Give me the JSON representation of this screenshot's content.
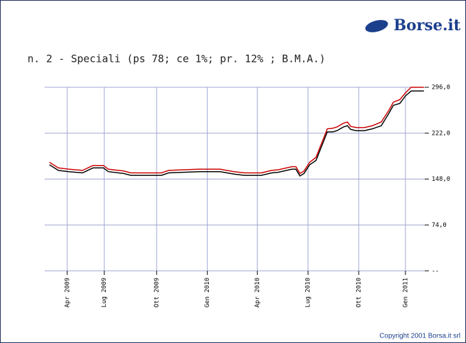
{
  "logo": "Borse.it",
  "copyright": "Copyright 2001 Borsa.it srl",
  "chart_data": {
    "type": "line",
    "title": "n. 2 - Speciali (ps 78; ce 1%; pr. 12% ; B.M.A.)",
    "x": [
      1.9,
      2.45,
      3.1,
      3.95,
      4.6,
      5.25,
      5.55,
      6.5,
      6.95,
      8.85,
      9.3,
      11.2,
      12.5,
      13.35,
      14,
      15.05,
      15.7,
      16.1,
      16.95,
      17.2,
      17.45,
      17.7,
      18.05,
      18.45,
      18.75,
      19.15,
      19.5,
      19.75,
      20.15,
      20.4,
      20.6,
      20.95,
      21.45,
      21.95,
      22.5,
      22.95,
      23.25,
      23.65,
      24,
      24.35,
      25.15
    ],
    "series": [
      {
        "color": "#cc0000",
        "values": [
          175,
          166,
          164,
          162,
          170,
          170,
          164,
          161,
          158,
          158,
          162,
          164,
          164,
          160,
          158,
          158,
          162,
          163,
          168,
          168,
          157,
          161,
          175,
          183,
          203,
          229,
          230,
          232,
          238,
          240,
          233,
          231,
          231,
          234,
          240,
          258,
          272,
          276,
          287,
          296,
          296
        ]
      },
      {
        "color": "#000000",
        "values": [
          171,
          162,
          160,
          158,
          166,
          166,
          160,
          157,
          154,
          154,
          158,
          160,
          160,
          156,
          154,
          154,
          158,
          159,
          164,
          164,
          153,
          157,
          171,
          178,
          198,
          224,
          224,
          226,
          232,
          234,
          228,
          226,
          226,
          229,
          234,
          253,
          267,
          270,
          282,
          290,
          290
        ]
      }
    ],
    "xlim": [
      1.6,
      25.2
    ],
    "xticks": [
      {
        "value": 3,
        "label": "Apr 2009"
      },
      {
        "value": 5.3,
        "label": "Lug 2009"
      },
      {
        "value": 8.55,
        "label": "Ott 2009"
      },
      {
        "value": 11.7,
        "label": "Gen 2010"
      },
      {
        "value": 14.8,
        "label": "Apr 2010"
      },
      {
        "value": 17.95,
        "label": "Lug 2010"
      },
      {
        "value": 21.1,
        "label": "Ott 2010"
      },
      {
        "value": 24,
        "label": "Gen 2011"
      }
    ],
    "ylim": [
      0,
      296
    ],
    "yticks": [
      {
        "value": 0,
        "label": "--"
      },
      {
        "value": 74,
        "label": "74,0"
      },
      {
        "value": 148,
        "label": "148,0"
      },
      {
        "value": 222,
        "label": "222,0"
      },
      {
        "value": 296,
        "label": "296,0"
      }
    ],
    "grid": true
  }
}
